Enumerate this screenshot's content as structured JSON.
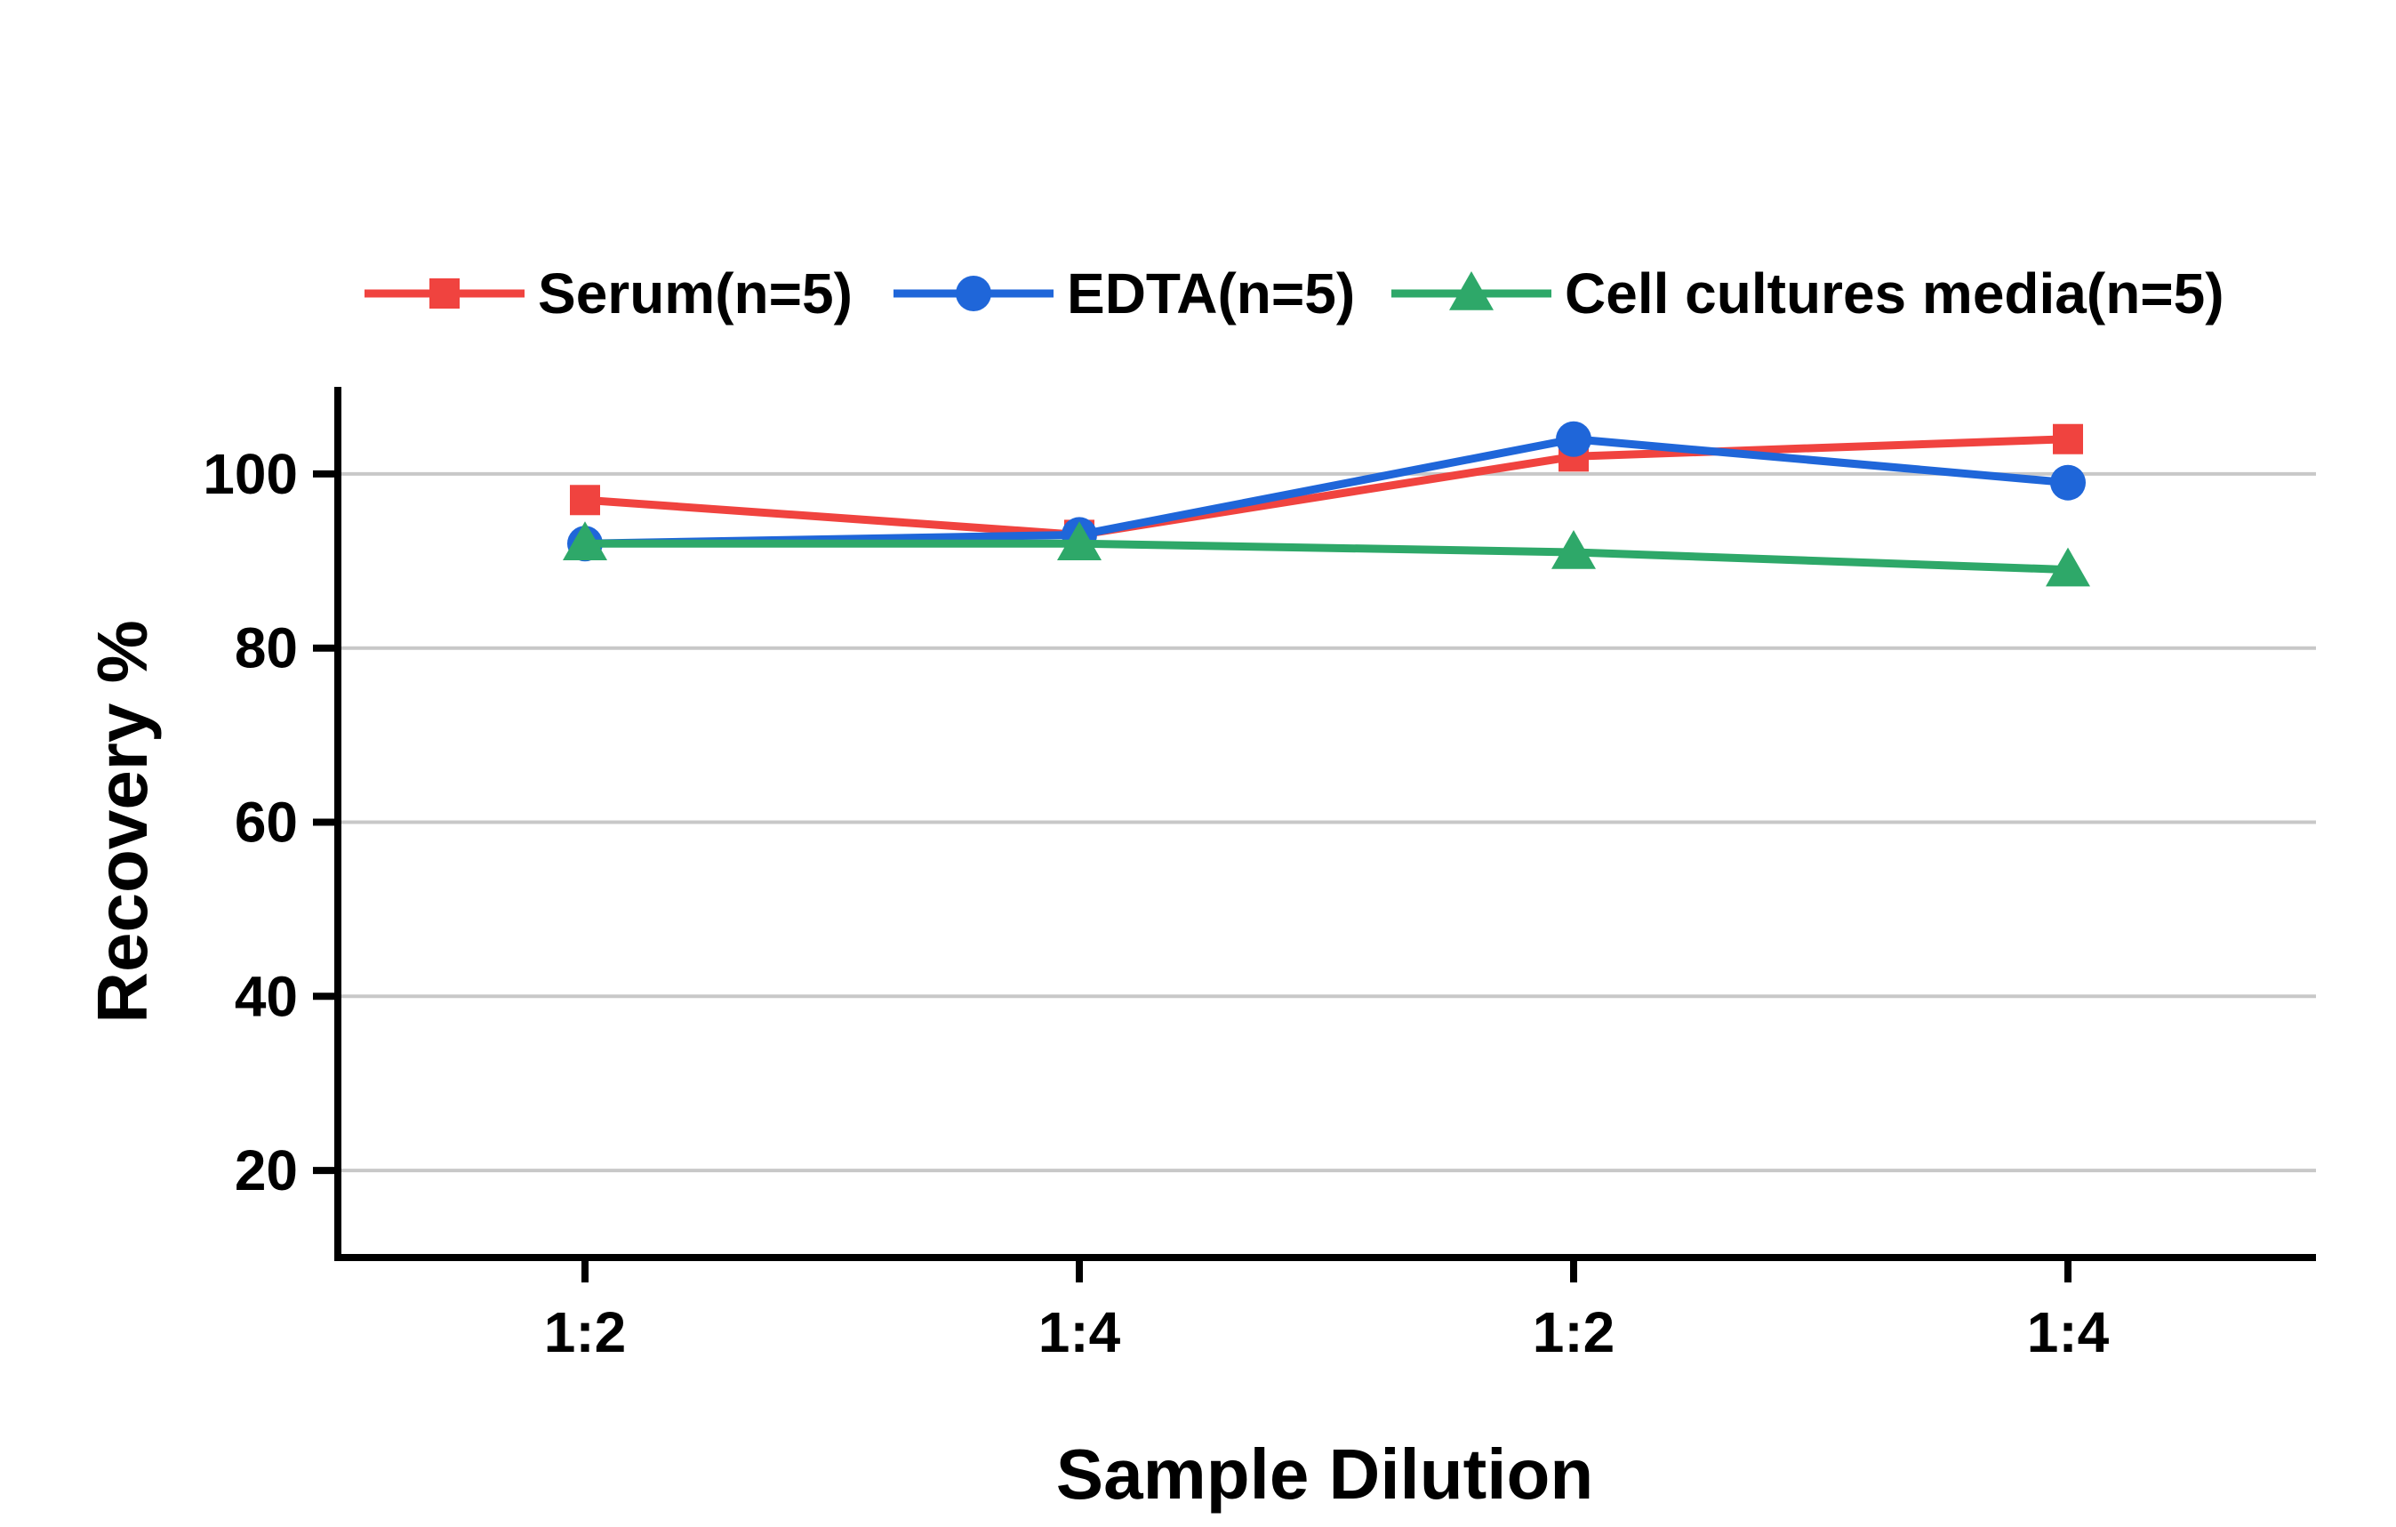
{
  "chart_data": {
    "type": "line",
    "title": "",
    "xlabel": "Sample Dilution",
    "ylabel": "Recovery %",
    "categories": [
      "1:2",
      "1:4",
      "1:2",
      "1:4"
    ],
    "ylim": [
      10,
      110
    ],
    "yticks": [
      20,
      40,
      60,
      80,
      100
    ],
    "grid": true,
    "legend_position": "top",
    "series": [
      {
        "name": "Serum(n=5)",
        "color": "#f0433f",
        "marker": "square",
        "values": [
          97,
          93,
          102,
          104
        ]
      },
      {
        "name": "EDTA(n=5)",
        "color": "#1f66d9",
        "marker": "circle",
        "values": [
          92,
          93,
          104,
          99
        ]
      },
      {
        "name": "Cell cultures media(n=5)",
        "color": "#2ea869",
        "marker": "triangle",
        "values": [
          92,
          92,
          91,
          89
        ]
      }
    ]
  }
}
